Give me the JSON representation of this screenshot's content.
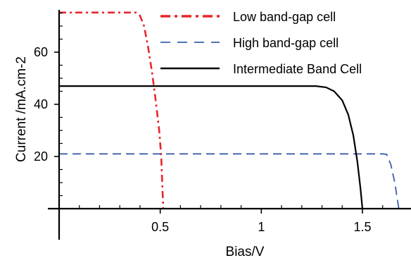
{
  "chart_data": {
    "type": "line",
    "title": "",
    "xlabel": "Bias/V",
    "ylabel": "Current /mA.cm-2",
    "xlim": [
      0,
      1.7
    ],
    "ylim": [
      0,
      77
    ],
    "x_ticks": [
      {
        "value": 0.5,
        "label": "0.5"
      },
      {
        "value": 1.0,
        "label": "1"
      },
      {
        "value": 1.5,
        "label": "1.5"
      }
    ],
    "y_ticks": [
      {
        "value": 20,
        "label": "20"
      },
      {
        "value": 40,
        "label": "40"
      },
      {
        "value": 60,
        "label": "60"
      }
    ],
    "grid": false,
    "legend_position": "top-right",
    "series": [
      {
        "name": "Low band-gap cell",
        "color": "#e8262b",
        "style": "dash-dot",
        "points": [
          [
            0.0,
            75.2
          ],
          [
            0.38,
            75.2
          ],
          [
            0.4,
            74.0
          ],
          [
            0.42,
            70.0
          ],
          [
            0.44,
            62.0
          ],
          [
            0.46,
            52.0
          ],
          [
            0.48,
            40.0
          ],
          [
            0.495,
            30.0
          ],
          [
            0.505,
            20.0
          ],
          [
            0.51,
            10.0
          ],
          [
            0.515,
            0.0
          ]
        ]
      },
      {
        "name": "High band-gap cell",
        "color": "#3d5ea8",
        "style": "dashed",
        "points": [
          [
            0.0,
            21.0
          ],
          [
            1.6,
            21.0
          ],
          [
            1.62,
            20.8
          ],
          [
            1.64,
            17.0
          ],
          [
            1.66,
            10.0
          ],
          [
            1.67,
            5.0
          ],
          [
            1.68,
            0.0
          ]
        ]
      },
      {
        "name": "Intermediate Band Cell",
        "color": "#000000",
        "style": "solid",
        "points": [
          [
            0.0,
            47.0
          ],
          [
            1.27,
            47.0
          ],
          [
            1.32,
            46.5
          ],
          [
            1.36,
            45.0
          ],
          [
            1.4,
            41.5
          ],
          [
            1.43,
            36.0
          ],
          [
            1.455,
            28.0
          ],
          [
            1.475,
            18.0
          ],
          [
            1.49,
            8.0
          ],
          [
            1.5,
            0.0
          ]
        ]
      }
    ]
  }
}
